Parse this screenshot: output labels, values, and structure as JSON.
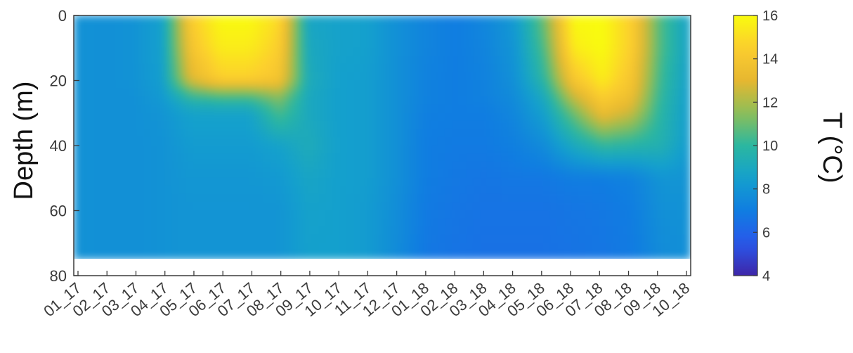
{
  "chart_data": {
    "type": "heatmap",
    "title": "",
    "xlabel": "",
    "ylabel": "Depth (m)",
    "colorbar_label": "T (°C)",
    "colormap": "parula",
    "x_categories": [
      "01_17",
      "02_17",
      "03_17",
      "04_17",
      "05_17",
      "06_17",
      "07_17",
      "08_17",
      "09_17",
      "10_17",
      "11_17",
      "12_17",
      "01_18",
      "02_18",
      "03_18",
      "04_18",
      "05_18",
      "06_18",
      "07_18",
      "08_18",
      "09_18",
      "10_18"
    ],
    "y_ticks": [
      0,
      20,
      40,
      60,
      80
    ],
    "ylim": [
      0,
      80
    ],
    "data_max_depth": 75,
    "clim": [
      4,
      16
    ],
    "colorbar_ticks": [
      4,
      6,
      8,
      10,
      12,
      14,
      16
    ],
    "depths": [
      0,
      10,
      20,
      25,
      30,
      40,
      50,
      60,
      75
    ],
    "values": [
      [
        7.9,
        7.8,
        7.9,
        8.5,
        14.5,
        16.0,
        16.0,
        15.0,
        8.8,
        8.6,
        8.5,
        7.8,
        7.3,
        7.0,
        7.4,
        8.2,
        11.0,
        16.0,
        16.0,
        14.5,
        10.5,
        8.5
      ],
      [
        7.9,
        7.8,
        7.9,
        8.5,
        14.0,
        15.5,
        15.5,
        14.5,
        9.0,
        8.6,
        8.5,
        7.8,
        7.3,
        7.0,
        7.3,
        8.0,
        10.5,
        15.5,
        16.0,
        14.5,
        10.5,
        8.5
      ],
      [
        7.9,
        7.8,
        7.9,
        8.4,
        13.0,
        14.5,
        14.5,
        14.0,
        9.2,
        8.5,
        8.4,
        7.8,
        7.2,
        7.0,
        7.2,
        7.8,
        9.8,
        14.0,
        15.5,
        14.0,
        10.2,
        8.4
      ],
      [
        7.9,
        7.8,
        7.8,
        8.2,
        10.0,
        10.5,
        10.5,
        11.5,
        9.0,
        8.5,
        8.4,
        7.8,
        7.2,
        7.0,
        7.2,
        7.6,
        9.0,
        12.5,
        14.5,
        13.5,
        10.0,
        8.3
      ],
      [
        7.9,
        7.8,
        7.8,
        8.0,
        8.6,
        8.6,
        8.6,
        10.5,
        9.0,
        8.5,
        8.4,
        7.8,
        7.1,
        7.0,
        7.0,
        7.4,
        8.5,
        11.0,
        13.5,
        12.5,
        9.8,
        8.3
      ],
      [
        7.9,
        7.8,
        7.8,
        7.9,
        8.3,
        8.3,
        8.3,
        8.6,
        9.2,
        8.5,
        8.4,
        7.8,
        7.0,
        6.9,
        6.9,
        7.1,
        7.6,
        9.0,
        10.0,
        9.8,
        9.5,
        8.2
      ],
      [
        7.9,
        7.8,
        7.8,
        7.9,
        8.1,
        8.1,
        8.1,
        8.2,
        8.8,
        8.5,
        8.4,
        7.8,
        7.0,
        6.8,
        6.7,
        6.8,
        6.8,
        7.0,
        7.0,
        7.2,
        8.0,
        8.0
      ],
      [
        7.9,
        7.8,
        7.8,
        7.9,
        8.0,
        8.0,
        8.0,
        8.0,
        8.6,
        8.5,
        8.3,
        7.7,
        6.9,
        6.7,
        6.6,
        6.6,
        6.6,
        6.7,
        6.8,
        7.0,
        7.8,
        7.9
      ],
      [
        7.9,
        7.8,
        7.8,
        7.9,
        8.0,
        8.0,
        8.0,
        8.0,
        8.5,
        8.5,
        8.3,
        7.6,
        6.8,
        6.6,
        6.5,
        6.5,
        6.5,
        6.6,
        6.7,
        6.9,
        7.6,
        7.8
      ]
    ]
  }
}
